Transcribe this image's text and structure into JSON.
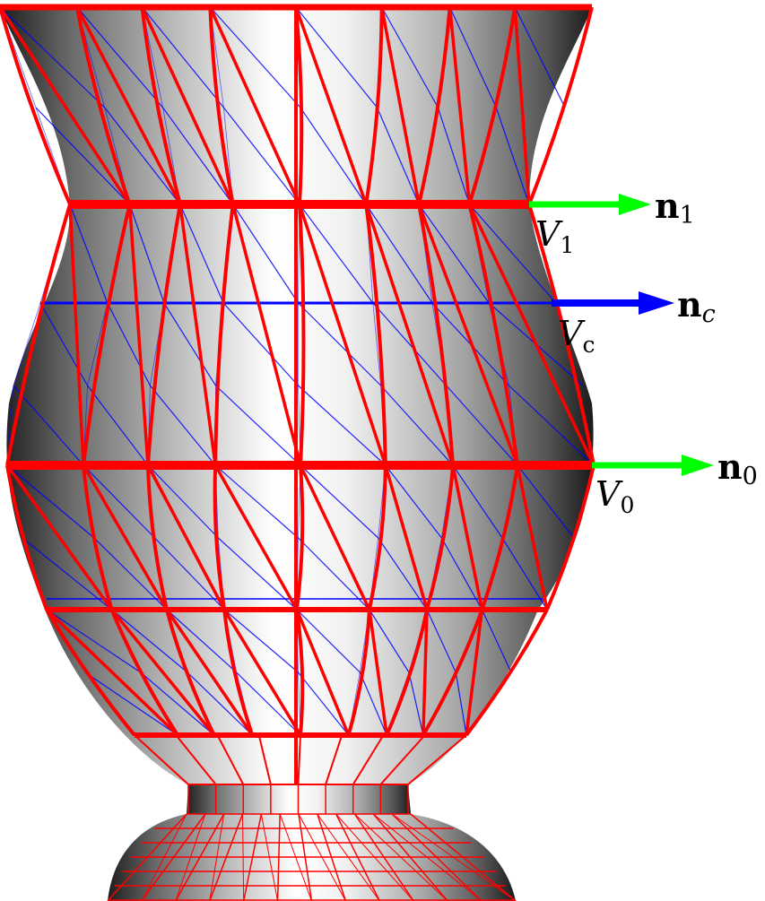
{
  "labels": {
    "v1": {
      "main": "V",
      "sub": "1"
    },
    "vc": {
      "main": "V",
      "sub": "c"
    },
    "v0": {
      "main": "V",
      "sub": "0"
    },
    "n1": {
      "main": "n",
      "sub": "1"
    },
    "nc": {
      "main": "n",
      "sub": "c"
    },
    "n0": {
      "main": "n",
      "sub": "0"
    }
  },
  "colors": {
    "red_mesh": "#ff0000",
    "blue_mesh": "#0000ff",
    "arrow_n1": "#00ff00",
    "arrow_nc": "#0000ff",
    "arrow_n0": "#00ff00",
    "surface_light": "#ffffff",
    "surface_dark": "#222222"
  }
}
